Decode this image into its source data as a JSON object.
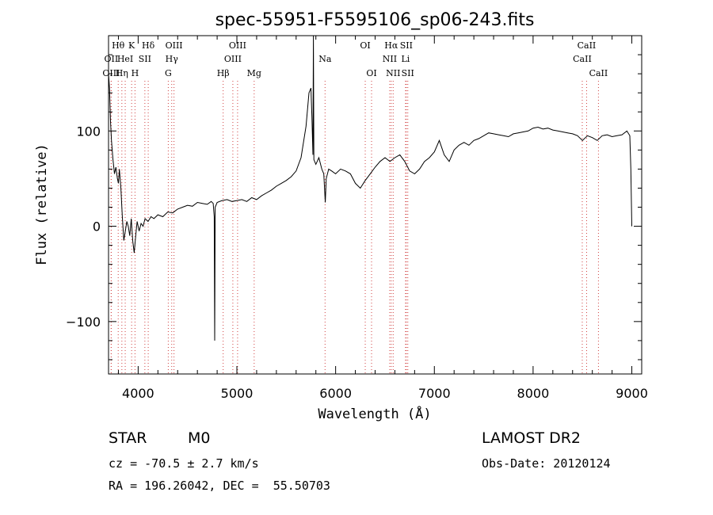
{
  "chart_data": {
    "type": "line",
    "title": "spec-55951-F5595106_sp06-243.fits",
    "xlabel": "Wavelength (Å)",
    "ylabel": "Flux (relative)",
    "xlim": [
      3700,
      9100
    ],
    "ylim": [
      -155,
      200
    ],
    "x_ticks": [
      4000,
      5000,
      6000,
      7000,
      8000,
      9000
    ],
    "y_ticks": [
      -100,
      0,
      100
    ],
    "grid": false,
    "series": [
      {
        "values": [
          [
            3700,
            160
          ],
          [
            3710,
            145
          ],
          [
            3720,
            110
          ],
          [
            3730,
            90
          ],
          [
            3745,
            70
          ],
          [
            3760,
            55
          ],
          [
            3775,
            62
          ],
          [
            3790,
            50
          ],
          [
            3800,
            45
          ],
          [
            3810,
            60
          ],
          [
            3825,
            40
          ],
          [
            3840,
            10
          ],
          [
            3855,
            -15
          ],
          [
            3870,
            -5
          ],
          [
            3885,
            5
          ],
          [
            3900,
            0
          ],
          [
            3915,
            -10
          ],
          [
            3930,
            8
          ],
          [
            3945,
            -15
          ],
          [
            3960,
            -28
          ],
          [
            3975,
            -10
          ],
          [
            3990,
            5
          ],
          [
            4010,
            -5
          ],
          [
            4030,
            3
          ],
          [
            4050,
            0
          ],
          [
            4070,
            8
          ],
          [
            4100,
            5
          ],
          [
            4130,
            10
          ],
          [
            4160,
            8
          ],
          [
            4200,
            12
          ],
          [
            4250,
            10
          ],
          [
            4300,
            15
          ],
          [
            4350,
            14
          ],
          [
            4400,
            18
          ],
          [
            4450,
            20
          ],
          [
            4500,
            22
          ],
          [
            4550,
            21
          ],
          [
            4600,
            25
          ],
          [
            4650,
            24
          ],
          [
            4700,
            23
          ],
          [
            4740,
            26
          ],
          [
            4760,
            24
          ],
          [
            4770,
            10
          ],
          [
            4775,
            -120
          ],
          [
            4780,
            20
          ],
          [
            4800,
            25
          ],
          [
            4850,
            27
          ],
          [
            4900,
            28
          ],
          [
            4950,
            26
          ],
          [
            5000,
            27
          ],
          [
            5050,
            28
          ],
          [
            5100,
            26
          ],
          [
            5150,
            30
          ],
          [
            5200,
            28
          ],
          [
            5250,
            32
          ],
          [
            5300,
            35
          ],
          [
            5350,
            38
          ],
          [
            5400,
            42
          ],
          [
            5450,
            45
          ],
          [
            5500,
            48
          ],
          [
            5550,
            52
          ],
          [
            5600,
            58
          ],
          [
            5650,
            72
          ],
          [
            5700,
            105
          ],
          [
            5730,
            140
          ],
          [
            5750,
            145
          ],
          [
            5760,
            115
          ],
          [
            5770,
            75
          ],
          [
            5775,
            200
          ],
          [
            5780,
            70
          ],
          [
            5800,
            65
          ],
          [
            5830,
            72
          ],
          [
            5860,
            60
          ],
          [
            5880,
            55
          ],
          [
            5895,
            25
          ],
          [
            5905,
            50
          ],
          [
            5930,
            60
          ],
          [
            5960,
            58
          ],
          [
            6000,
            55
          ],
          [
            6050,
            60
          ],
          [
            6100,
            58
          ],
          [
            6150,
            55
          ],
          [
            6200,
            45
          ],
          [
            6250,
            40
          ],
          [
            6300,
            48
          ],
          [
            6350,
            55
          ],
          [
            6400,
            62
          ],
          [
            6450,
            68
          ],
          [
            6500,
            72
          ],
          [
            6550,
            68
          ],
          [
            6600,
            72
          ],
          [
            6650,
            75
          ],
          [
            6700,
            68
          ],
          [
            6750,
            58
          ],
          [
            6800,
            55
          ],
          [
            6850,
            60
          ],
          [
            6900,
            68
          ],
          [
            6950,
            72
          ],
          [
            7000,
            78
          ],
          [
            7050,
            90
          ],
          [
            7100,
            75
          ],
          [
            7150,
            68
          ],
          [
            7200,
            80
          ],
          [
            7250,
            85
          ],
          [
            7300,
            88
          ],
          [
            7350,
            85
          ],
          [
            7400,
            90
          ],
          [
            7450,
            92
          ],
          [
            7500,
            95
          ],
          [
            7550,
            98
          ],
          [
            7600,
            97
          ],
          [
            7650,
            96
          ],
          [
            7700,
            95
          ],
          [
            7750,
            94
          ],
          [
            7800,
            97
          ],
          [
            7850,
            98
          ],
          [
            7900,
            99
          ],
          [
            7950,
            100
          ],
          [
            8000,
            103
          ],
          [
            8050,
            104
          ],
          [
            8100,
            102
          ],
          [
            8150,
            103
          ],
          [
            8200,
            101
          ],
          [
            8250,
            100
          ],
          [
            8300,
            99
          ],
          [
            8350,
            98
          ],
          [
            8400,
            97
          ],
          [
            8450,
            95
          ],
          [
            8500,
            90
          ],
          [
            8550,
            95
          ],
          [
            8600,
            93
          ],
          [
            8650,
            90
          ],
          [
            8700,
            95
          ],
          [
            8750,
            96
          ],
          [
            8800,
            94
          ],
          [
            8850,
            95
          ],
          [
            8900,
            96
          ],
          [
            8950,
            100
          ],
          [
            8980,
            95
          ],
          [
            8990,
            60
          ],
          [
            9000,
            0
          ]
        ]
      }
    ],
    "line_markers": [
      {
        "wavelength": 3727,
        "label": "OII",
        "row": 1
      },
      {
        "wavelength": 3727,
        "label": "OIII",
        "row": 2
      },
      {
        "wavelength": 3798,
        "label": "Hθ",
        "row": 0
      },
      {
        "wavelength": 3835,
        "label": "Hη",
        "row": 2
      },
      {
        "wavelength": 3869,
        "label": "HeI",
        "row": 1
      },
      {
        "wavelength": 3934,
        "label": "K",
        "row": 0
      },
      {
        "wavelength": 3968,
        "label": "H",
        "row": 2
      },
      {
        "wavelength": 4068,
        "label": "SII",
        "row": 1
      },
      {
        "wavelength": 4102,
        "label": "Hδ",
        "row": 0
      },
      {
        "wavelength": 4305,
        "label": "G",
        "row": 2
      },
      {
        "wavelength": 4340,
        "label": "Hγ",
        "row": 1
      },
      {
        "wavelength": 4363,
        "label": "OIII",
        "row": 0
      },
      {
        "wavelength": 4861,
        "label": "Hβ",
        "row": 2
      },
      {
        "wavelength": 4959,
        "label": "OIII",
        "row": 1
      },
      {
        "wavelength": 5007,
        "label": "OIII",
        "row": 0
      },
      {
        "wavelength": 5175,
        "label": "Mg",
        "row": 2
      },
      {
        "wavelength": 5893,
        "label": "Na",
        "row": 1
      },
      {
        "wavelength": 6300,
        "label": "OI",
        "row": 0
      },
      {
        "wavelength": 6364,
        "label": "OI",
        "row": 2
      },
      {
        "wavelength": 6548,
        "label": "NII",
        "row": 1
      },
      {
        "wavelength": 6563,
        "label": "Hα",
        "row": 0
      },
      {
        "wavelength": 6583,
        "label": "NII",
        "row": 2
      },
      {
        "wavelength": 6708,
        "label": "Li",
        "row": 1
      },
      {
        "wavelength": 6716,
        "label": "SII",
        "row": 0
      },
      {
        "wavelength": 6731,
        "label": "SII",
        "row": 2
      },
      {
        "wavelength": 8498,
        "label": "CaII",
        "row": 1
      },
      {
        "wavelength": 8542,
        "label": "CaII",
        "row": 0
      },
      {
        "wavelength": 8662,
        "label": "CaII",
        "row": 2
      }
    ]
  },
  "info": {
    "class_label": "STAR",
    "subclass_label": "M0",
    "survey_label": "LAMOST DR2",
    "redshift_text": "cz = -70.5 ± 2.7 km/s",
    "obs_date_text": "Obs-Date: 20120124",
    "coords_text": "RA = 196.26042, DEC =  55.50703"
  },
  "colors": {
    "spectrum": "#000000",
    "marker_line": "#d04040"
  }
}
